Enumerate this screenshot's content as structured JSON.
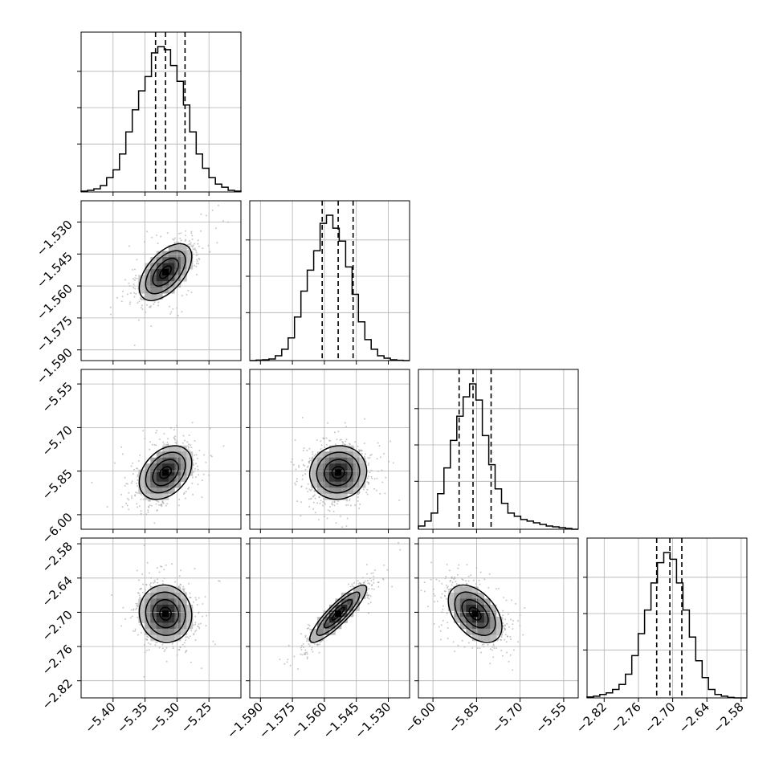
{
  "chart_data": {
    "type": "corner",
    "params": [
      {
        "index": 0,
        "ticks": [
          "−5.40",
          "−5.35",
          "−5.30",
          "−5.25"
        ],
        "tick_values": [
          -5.4,
          -5.35,
          -5.3,
          -5.25
        ],
        "range": [
          -5.45,
          -5.2
        ],
        "mean": -5.318,
        "sd": 0.02,
        "quantiles": [
          -5.3335,
          -5.318,
          -5.2875
        ],
        "hist_x": [
          -5.445,
          -5.435,
          -5.425,
          -5.415,
          -5.405,
          -5.395,
          -5.385,
          -5.375,
          -5.365,
          -5.355,
          -5.345,
          -5.335,
          -5.325,
          -5.315,
          -5.305,
          -5.295,
          -5.285,
          -5.275,
          -5.265,
          -5.255,
          -5.245,
          -5.235,
          -5.225,
          -5.215,
          -5.205
        ],
        "hist_y": [
          0.5,
          1,
          2,
          4,
          9,
          14,
          24,
          38,
          52,
          64,
          73,
          88,
          92,
          90,
          80,
          70,
          55,
          38,
          24,
          15,
          9,
          5,
          3,
          1,
          0.5
        ]
      },
      {
        "index": 1,
        "ticks": [
          "−1.590",
          "−1.575",
          "−1.560",
          "−1.545",
          "−1.530"
        ],
        "tick_values": [
          -1.59,
          -1.575,
          -1.56,
          -1.545,
          -1.53
        ],
        "range": [
          -1.595,
          -1.52
        ],
        "mean": -1.5535,
        "sd": 0.0065,
        "quantiles": [
          -1.561,
          -1.5535,
          -1.5465
        ],
        "hist_x": [
          -1.5935,
          -1.5905,
          -1.5875,
          -1.5845,
          -1.5815,
          -1.5785,
          -1.5755,
          -1.5725,
          -1.5695,
          -1.5665,
          -1.5635,
          -1.5605,
          -1.5575,
          -1.5545,
          -1.5515,
          -1.5485,
          -1.5455,
          -1.5425,
          -1.5395,
          -1.5365,
          -1.5335,
          -1.5305,
          -1.5275,
          -1.5245,
          -1.5215
        ],
        "hist_y": [
          0,
          0.3,
          0.5,
          1,
          3,
          7,
          14,
          27,
          43,
          56,
          68,
          85,
          90,
          82,
          74,
          58,
          41,
          24,
          13,
          7,
          3,
          1.5,
          0.5,
          0.2,
          0
        ]
      },
      {
        "index": 2,
        "ticks": [
          "−6.00",
          "−5.85",
          "−5.70",
          "−5.55"
        ],
        "tick_values": [
          -6.0,
          -5.85,
          -5.7,
          -5.55
        ],
        "range": [
          -6.05,
          -5.5
        ],
        "mean": -5.855,
        "sd": 0.045,
        "quantiles": [
          -5.91,
          -5.862,
          -5.8
        ],
        "hist_x": [
          -6.039,
          -6.017,
          -5.995,
          -5.973,
          -5.951,
          -5.929,
          -5.907,
          -5.885,
          -5.863,
          -5.841,
          -5.819,
          -5.797,
          -5.775,
          -5.753,
          -5.731,
          -5.709,
          -5.687,
          -5.665,
          -5.643,
          -5.621,
          -5.599,
          -5.577,
          -5.555,
          -5.533,
          -5.511
        ],
        "hist_y": [
          2,
          5,
          10,
          22,
          38,
          55,
          70,
          82,
          90,
          80,
          58,
          40,
          25,
          16,
          10,
          8,
          6,
          5,
          4,
          3,
          2,
          1.5,
          1,
          0.5,
          0
        ]
      },
      {
        "index": 3,
        "ticks": [
          "−2.82",
          "−2.76",
          "−2.70",
          "−2.64",
          "−2.58"
        ],
        "tick_values": [
          -2.82,
          -2.76,
          -2.7,
          -2.64,
          -2.58
        ],
        "range": [
          -2.85,
          -2.57
        ],
        "mean": -2.7025,
        "sd": 0.0245,
        "quantiles": [
          -2.728,
          -2.705,
          -2.684
        ],
        "hist_x": [
          -2.8444,
          -2.8332,
          -2.822,
          -2.8108,
          -2.7996,
          -2.7884,
          -2.7772,
          -2.766,
          -2.7548,
          -2.7436,
          -2.7324,
          -2.7212,
          -2.71,
          -2.6988,
          -2.6876,
          -2.6764,
          -2.6652,
          -2.654,
          -2.6428,
          -2.6316,
          -2.6204,
          -2.6092,
          -2.598,
          -2.5868,
          -2.5756
        ],
        "hist_y": [
          0.5,
          1,
          2,
          3,
          5,
          8,
          14,
          25,
          38,
          52,
          68,
          80,
          86,
          82,
          68,
          52,
          36,
          22,
          12,
          5,
          2,
          1,
          0.3,
          0,
          0
        ]
      }
    ],
    "correlations": [
      {
        "pair": [
          1,
          0
        ],
        "rho": 0.55
      },
      {
        "pair": [
          2,
          0
        ],
        "rho": 0.35
      },
      {
        "pair": [
          2,
          1
        ],
        "rho": 0.05
      },
      {
        "pair": [
          3,
          0
        ],
        "rho": -0.05
      },
      {
        "pair": [
          3,
          1
        ],
        "rho": 0.88
      },
      {
        "pair": [
          3,
          2
        ],
        "rho": -0.45
      }
    ],
    "grid": true,
    "legend": "none"
  }
}
